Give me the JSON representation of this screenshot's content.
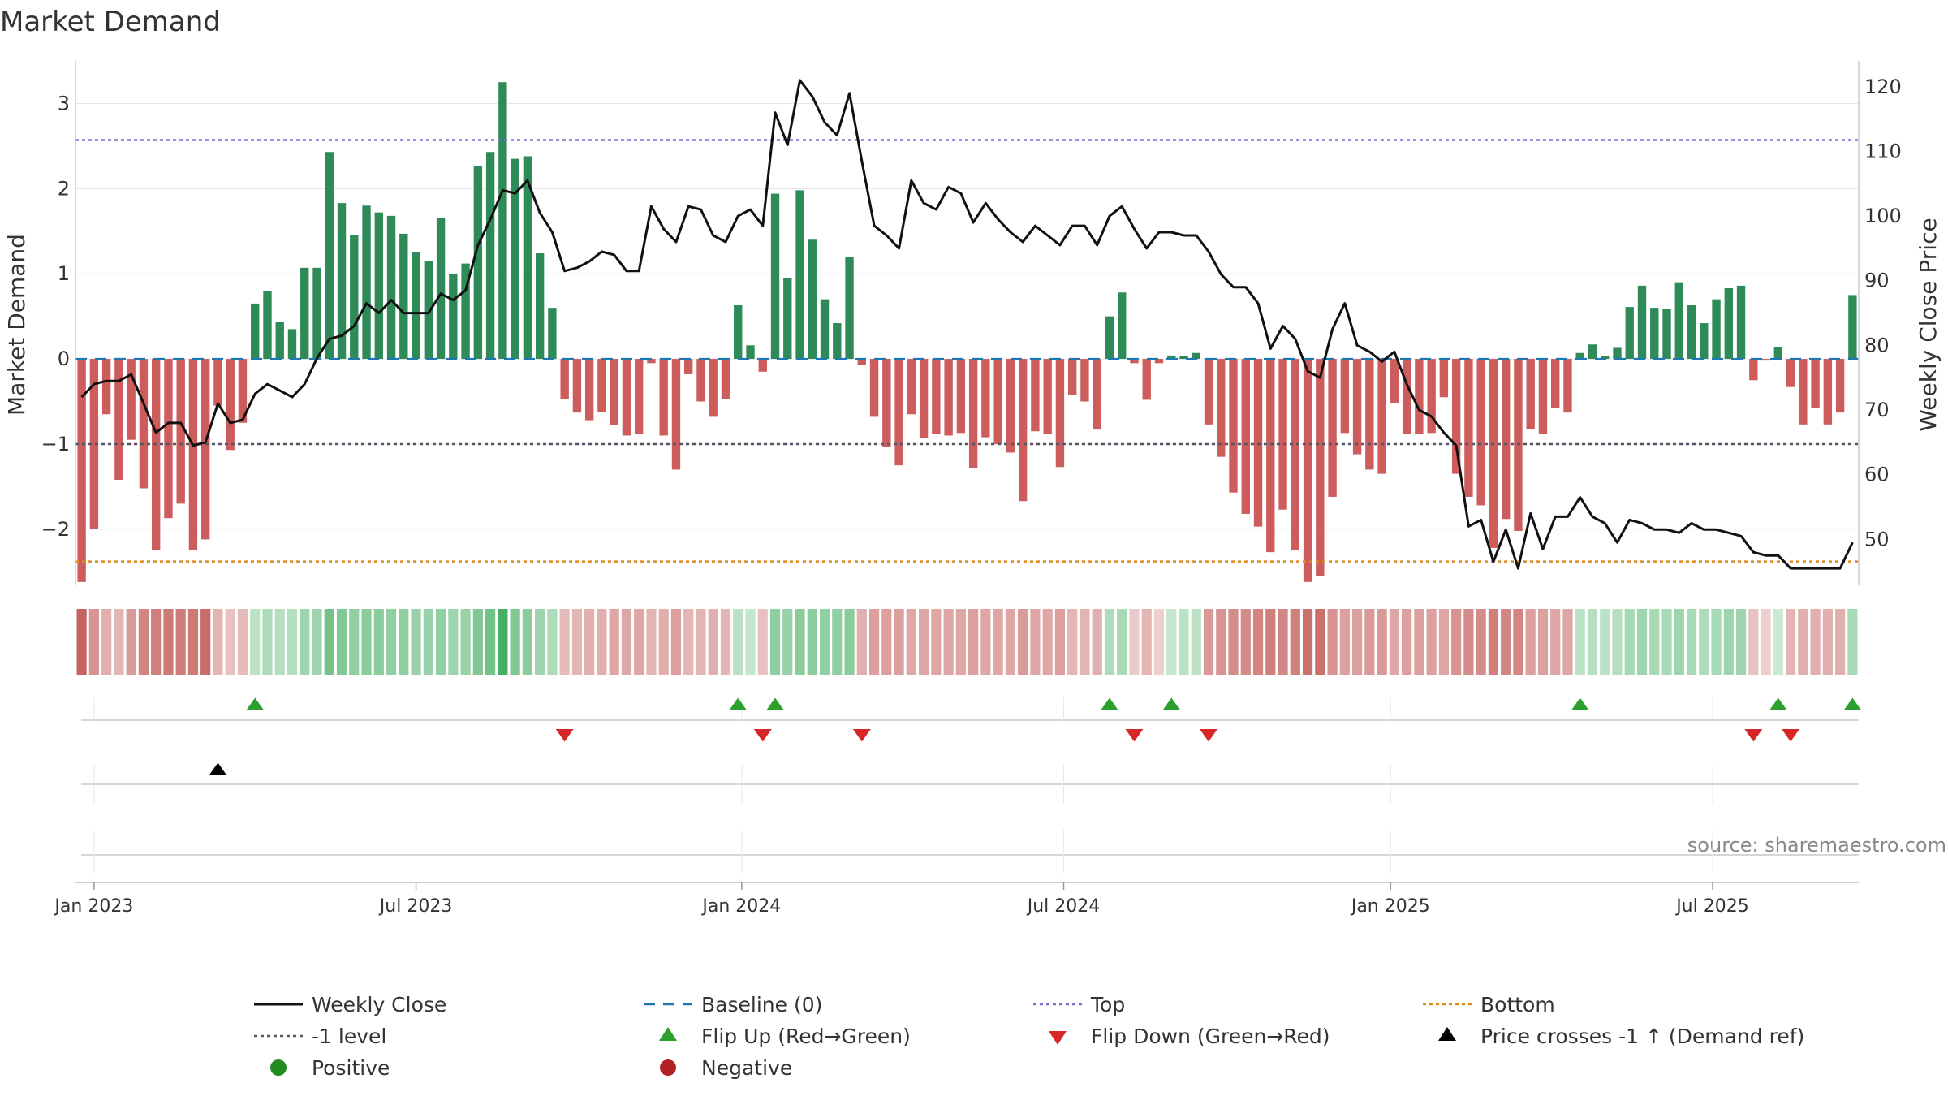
{
  "chart_data": {
    "type": "bar",
    "title": "Market Demand",
    "ylabel": "Market Demand",
    "y2label": "Weekly Close Price",
    "ylim": [
      -2.65,
      3.5
    ],
    "y2lim": [
      43,
      124
    ],
    "yticks": [
      -2,
      -1,
      0,
      1,
      2,
      3
    ],
    "ytick_labels": [
      "−2",
      "−1",
      "0",
      "1",
      "2",
      "3"
    ],
    "y2ticks": [
      50,
      60,
      70,
      80,
      90,
      100,
      110,
      120
    ],
    "y2tick_labels": [
      "50",
      "60",
      "70",
      "80",
      "90",
      "100",
      "110",
      "120"
    ],
    "xticks": [
      {
        "label": "Jan 2023",
        "index": 1.5
      },
      {
        "label": "Jul 2023",
        "index": 27.5
      },
      {
        "label": "Jan 2024",
        "index": 53.8
      },
      {
        "label": "Jul 2024",
        "index": 79.8
      },
      {
        "label": "Jan 2025",
        "index": 106.2
      },
      {
        "label": "Jul 2025",
        "index": 132.2
      }
    ],
    "reference_lines": {
      "baseline": 0,
      "top": 2.57,
      "minus_one": -1,
      "bottom": -2.38
    },
    "demand": [
      -2.62,
      -2.0,
      -0.65,
      -1.42,
      -0.95,
      -1.52,
      -2.25,
      -1.87,
      -1.7,
      -2.25,
      -2.12,
      -0.55,
      -1.07,
      -0.75,
      0.65,
      0.8,
      0.43,
      0.35,
      1.07,
      1.07,
      2.43,
      1.83,
      1.45,
      1.8,
      1.72,
      1.68,
      1.47,
      1.25,
      1.15,
      1.66,
      1.0,
      1.12,
      2.27,
      2.43,
      3.25,
      2.35,
      2.38,
      1.24,
      0.6,
      -0.47,
      -0.63,
      -0.72,
      -0.62,
      -0.78,
      -0.9,
      -0.88,
      -0.05,
      -0.9,
      -1.3,
      -0.18,
      -0.5,
      -0.68,
      -0.47,
      0.63,
      0.16,
      -0.15,
      1.94,
      0.95,
      1.98,
      1.4,
      0.7,
      0.42,
      1.2,
      -0.07,
      -0.68,
      -1.03,
      -1.25,
      -0.65,
      -0.93,
      -0.88,
      -0.9,
      -0.87,
      -1.28,
      -0.92,
      -1.0,
      -1.1,
      -1.67,
      -0.85,
      -0.88,
      -1.27,
      -0.42,
      -0.5,
      -0.83,
      0.5,
      0.78,
      -0.05,
      -0.48,
      -0.05,
      0.04,
      0.03,
      0.07,
      -0.77,
      -1.15,
      -1.57,
      -1.82,
      -1.97,
      -2.27,
      -1.77,
      -2.25,
      -2.62,
      -2.55,
      -1.62,
      -0.87,
      -1.12,
      -1.3,
      -1.35,
      -0.52,
      -0.88,
      -0.88,
      -0.87,
      -0.45,
      -1.35,
      -1.62,
      -1.72,
      -2.22,
      -1.88,
      -2.02,
      -0.82,
      -0.88,
      -0.58,
      -0.63,
      0.07,
      0.17,
      0.03,
      0.13,
      0.61,
      0.86,
      0.6,
      0.59,
      0.9,
      0.63,
      0.42,
      0.7,
      0.83,
      0.86,
      -0.25,
      -0.02,
      0.14,
      -0.33,
      -0.77,
      -0.58,
      -0.77,
      -0.63,
      0.75
    ],
    "weekly_close": [
      72,
      74,
      74.5,
      74.5,
      75.5,
      71,
      66.5,
      68,
      68,
      64.5,
      65,
      71,
      68,
      68.5,
      72.5,
      74,
      73,
      72,
      74,
      78,
      81,
      81.5,
      83,
      86.5,
      85,
      87,
      85,
      85,
      85,
      88,
      87,
      88.5,
      95.5,
      99.5,
      104,
      103.5,
      105.5,
      100.5,
      97.5,
      91.5,
      92,
      93,
      94.5,
      94,
      91.5,
      91.5,
      101.5,
      98,
      96,
      101.5,
      101,
      97,
      96,
      100,
      101,
      98.5,
      116,
      111,
      121,
      118.5,
      114.5,
      112.5,
      119,
      108.5,
      98.5,
      97,
      95,
      105.5,
      102,
      101,
      104.5,
      103.5,
      99,
      102,
      99.5,
      97.5,
      96,
      98.5,
      97,
      95.5,
      98.5,
      98.5,
      95.5,
      100,
      101.5,
      98,
      95,
      97.5,
      97.5,
      97,
      97,
      94.5,
      91,
      89,
      89,
      86.5,
      79.5,
      83,
      81,
      76,
      75,
      82.5,
      86.5,
      80,
      79,
      77.5,
      79,
      74,
      70,
      69,
      66.5,
      64.5,
      52,
      53,
      46.5,
      51.5,
      45.5,
      54,
      48.5,
      53.5,
      53.5,
      56.5,
      53.5,
      52.5,
      49.5,
      53,
      52.5,
      51.5,
      51.5,
      51,
      52.5,
      51.5,
      51.5,
      51,
      50.5,
      48,
      47.5,
      47.5,
      45.5,
      45.5,
      45.5,
      45.5,
      45.5,
      49.5
    ],
    "heat_strip": [
      -0.9,
      -0.55,
      -0.35,
      -0.3,
      -0.5,
      -0.65,
      -0.7,
      -0.75,
      -0.72,
      -0.75,
      -0.85,
      -0.3,
      -0.2,
      -0.25,
      0.2,
      0.3,
      0.25,
      0.25,
      0.4,
      0.4,
      0.7,
      0.6,
      0.5,
      0.55,
      0.55,
      0.5,
      0.5,
      0.45,
      0.45,
      0.5,
      0.4,
      0.45,
      0.6,
      0.7,
      1.0,
      0.6,
      0.55,
      0.4,
      0.3,
      -0.25,
      -0.3,
      -0.35,
      -0.35,
      -0.4,
      -0.4,
      -0.4,
      -0.3,
      -0.35,
      -0.45,
      -0.3,
      -0.3,
      -0.35,
      -0.3,
      0.2,
      0.15,
      -0.2,
      0.5,
      0.45,
      0.55,
      0.55,
      0.5,
      0.5,
      0.55,
      -0.35,
      -0.45,
      -0.45,
      -0.45,
      -0.4,
      -0.4,
      -0.4,
      -0.4,
      -0.4,
      -0.45,
      -0.4,
      -0.4,
      -0.4,
      -0.5,
      -0.4,
      -0.4,
      -0.45,
      -0.3,
      -0.3,
      -0.35,
      0.3,
      0.35,
      -0.15,
      -0.3,
      -0.1,
      0.15,
      0.2,
      0.2,
      -0.5,
      -0.55,
      -0.6,
      -0.6,
      -0.65,
      -0.7,
      -0.65,
      -0.7,
      -0.8,
      -0.8,
      -0.55,
      -0.45,
      -0.45,
      -0.5,
      -0.5,
      -0.4,
      -0.45,
      -0.45,
      -0.45,
      -0.4,
      -0.55,
      -0.6,
      -0.6,
      -0.7,
      -0.65,
      -0.65,
      -0.45,
      -0.45,
      -0.4,
      -0.4,
      0.2,
      0.25,
      0.2,
      0.25,
      0.35,
      0.4,
      0.35,
      0.35,
      0.4,
      0.35,
      0.3,
      0.35,
      0.4,
      0.4,
      -0.2,
      -0.1,
      0.1,
      -0.3,
      -0.35,
      -0.35,
      -0.35,
      -0.35,
      0.35
    ],
    "flip_up": [
      14.5,
      53.5,
      56.5,
      83.5,
      88.5,
      121.5,
      137.5,
      143.5
    ],
    "flip_down": [
      39.5,
      55.5,
      63.5,
      85.5,
      91.5,
      135.5,
      138.5
    ],
    "price_cross": [
      11.5
    ],
    "legend": [
      {
        "label": "Weekly Close",
        "marker": "line"
      },
      {
        "label": "Baseline (0)",
        "marker": "dash"
      },
      {
        "label": "Top",
        "marker": "dot"
      },
      {
        "label": "Bottom",
        "marker": "dot"
      },
      {
        "label": "-1 level",
        "marker": "dot"
      },
      {
        "label": "Flip Up (Red→Green)",
        "marker": "triangle-up"
      },
      {
        "label": "Flip Down (Green→Red)",
        "marker": "triangle-down"
      },
      {
        "label": "Price crosses -1 ↑ (Demand ref)",
        "marker": "triangle-up"
      },
      {
        "label": "Positive",
        "marker": "circle"
      },
      {
        "label": "Negative",
        "marker": "circle"
      }
    ],
    "source": "source: sharemaestro.com"
  },
  "colors": {
    "positive": "#2e8b57",
    "negative": "#cd5c5c",
    "close_line": "#111111",
    "baseline": "#1f77b4",
    "top_line": "#7a6fd0",
    "minus_one_line": "#555566",
    "bottom_line": "#e08a1a",
    "flip_up": "#2ca02c",
    "flip_down": "#d62728",
    "cross": "#000000",
    "legend_positive": "#228b22",
    "legend_negative": "#b22222",
    "axis": "#cccccc",
    "grid": "#e6e6e6",
    "text": "#333333",
    "source_text": "#888888"
  }
}
